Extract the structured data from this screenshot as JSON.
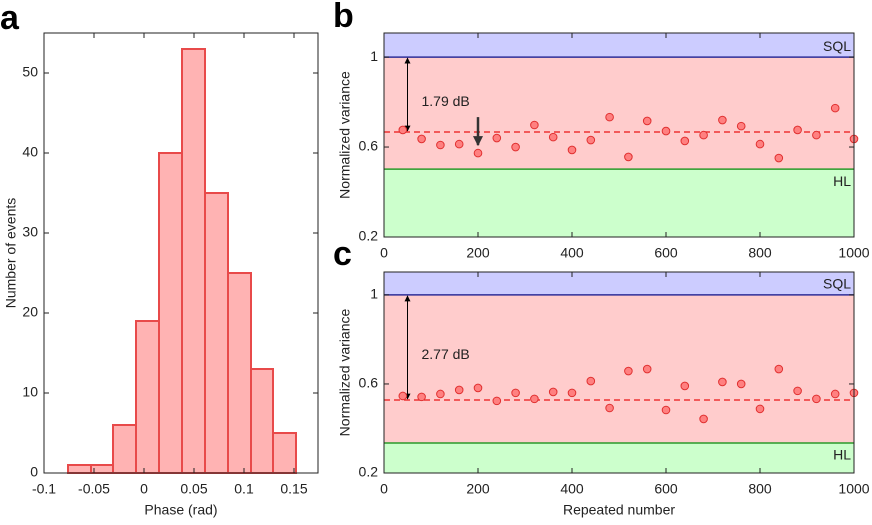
{
  "chart_data": [
    {
      "type": "histogram",
      "panel": "a",
      "xlabel": "Phase (rad)",
      "ylabel": "Number of events",
      "bins": [
        -0.076,
        -0.053,
        -0.031,
        -0.008,
        0.015,
        0.038,
        0.061,
        0.084,
        0.107,
        0.129,
        0.152
      ],
      "values": [
        1,
        1,
        6,
        19,
        40,
        53,
        35,
        25,
        13,
        5
      ],
      "color": "#ffb3b3",
      "edge_color": "#e84a4a",
      "xlim": [
        -0.1,
        0.174
      ],
      "xticks": [
        -0.1,
        -0.05,
        0,
        0.05,
        0.1,
        0.15
      ],
      "ylim": [
        0,
        55
      ],
      "yticks": [
        0,
        10,
        20,
        30,
        40,
        50
      ]
    },
    {
      "type": "scatter",
      "panel": "b",
      "ylabel": "Normalized variance",
      "x": [
        40,
        80,
        120,
        160,
        200,
        240,
        280,
        320,
        360,
        400,
        440,
        480,
        520,
        560,
        600,
        640,
        680,
        720,
        760,
        800,
        840,
        880,
        920,
        960,
        1000
      ],
      "values": [
        0.676,
        0.636,
        0.609,
        0.613,
        0.573,
        0.64,
        0.6,
        0.698,
        0.644,
        0.587,
        0.631,
        0.733,
        0.556,
        0.716,
        0.671,
        0.627,
        0.653,
        0.72,
        0.693,
        0.613,
        0.551,
        0.676,
        0.653,
        0.773,
        0.636
      ],
      "color": "#ff8080",
      "edge_color": "#e03030",
      "xlim": [
        0,
        1000
      ],
      "xticks": [
        0,
        200,
        400,
        600,
        800,
        1000
      ],
      "ylim": [
        0.2,
        1.107
      ],
      "yticks": [
        0.2,
        0.6,
        1
      ],
      "sql": {
        "value": 1,
        "label": "SQL",
        "color": "#2e2e99",
        "fill": "#ccccff"
      },
      "hl": {
        "value": 0.502,
        "label": "HL",
        "color": "#2a9a2a",
        "fill": "#ccffcc"
      },
      "mid_fill": "#ffcccc",
      "mean": {
        "value": 0.667,
        "color": "#ee3333"
      },
      "annotation": {
        "text": "1.79 dB",
        "x": 50
      },
      "arrow_x": 200
    },
    {
      "type": "scatter",
      "panel": "c",
      "xlabel": "Repeated number",
      "ylabel": "Normalized variance",
      "x": [
        40,
        80,
        120,
        160,
        200,
        240,
        280,
        320,
        360,
        400,
        440,
        480,
        520,
        560,
        600,
        640,
        680,
        720,
        760,
        800,
        840,
        880,
        920,
        960,
        1000
      ],
      "values": [
        0.546,
        0.542,
        0.555,
        0.573,
        0.582,
        0.524,
        0.56,
        0.533,
        0.564,
        0.56,
        0.613,
        0.492,
        0.658,
        0.667,
        0.483,
        0.591,
        0.443,
        0.609,
        0.6,
        0.488,
        0.667,
        0.569,
        0.533,
        0.555,
        0.56
      ],
      "color": "#ff8080",
      "edge_color": "#e03030",
      "xlim": [
        0,
        1000
      ],
      "xticks": [
        0,
        200,
        400,
        600,
        800,
        1000
      ],
      "ylim": [
        0.2,
        1.103
      ],
      "yticks": [
        0.2,
        0.6,
        1
      ],
      "sql": {
        "value": 1,
        "label": "SQL",
        "color": "#2e2e99",
        "fill": "#ccccff"
      },
      "hl": {
        "value": 0.335,
        "label": "HL",
        "color": "#2a9a2a",
        "fill": "#ccffcc"
      },
      "mid_fill": "#ffcccc",
      "mean": {
        "value": 0.528,
        "color": "#ee3333"
      },
      "annotation": {
        "text": "2.77 dB",
        "x": 50
      }
    }
  ]
}
